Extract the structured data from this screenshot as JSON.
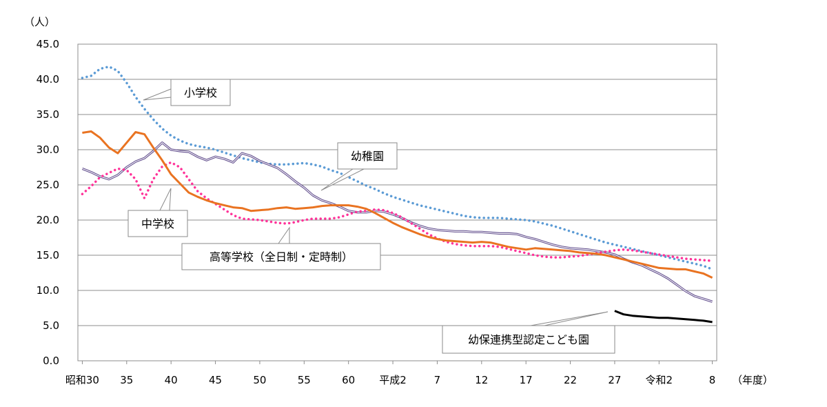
{
  "chart_data": {
    "type": "line",
    "y_unit": "（人）",
    "x_unit": "（年度）",
    "ylim": [
      0,
      45
    ],
    "yticks": [
      "0.0",
      "5.0",
      "10.0",
      "15.0",
      "20.0",
      "25.0",
      "30.0",
      "35.0",
      "40.0",
      "45.0"
    ],
    "ytick_values": [
      0,
      5,
      10,
      15,
      20,
      25,
      30,
      35,
      40,
      45
    ],
    "grid": true,
    "x_start_index": 0,
    "x_end_index": 72,
    "xticks": [
      {
        "i": 0,
        "label": "昭和30"
      },
      {
        "i": 5,
        "label": "35"
      },
      {
        "i": 10,
        "label": "40"
      },
      {
        "i": 15,
        "label": "45"
      },
      {
        "i": 20,
        "label": "50"
      },
      {
        "i": 25,
        "label": "55"
      },
      {
        "i": 30,
        "label": "60"
      },
      {
        "i": 35,
        "label": "平成2"
      },
      {
        "i": 40,
        "label": "7"
      },
      {
        "i": 45,
        "label": "12"
      },
      {
        "i": 50,
        "label": "17"
      },
      {
        "i": 55,
        "label": "22"
      },
      {
        "i": 60,
        "label": "27"
      },
      {
        "i": 65,
        "label": "令和2"
      },
      {
        "i": 71,
        "label": "8"
      }
    ],
    "series": [
      {
        "name": "小学校",
        "color": "#5b9bd5",
        "style": "dotted",
        "points": [
          [
            0,
            40.2
          ],
          [
            1,
            40.5
          ],
          [
            2,
            41.5
          ],
          [
            3,
            41.8
          ],
          [
            4,
            41.2
          ],
          [
            5,
            39.5
          ],
          [
            6,
            37.5
          ],
          [
            7,
            35.8
          ],
          [
            8,
            34.3
          ],
          [
            9,
            33.0
          ],
          [
            10,
            32.0
          ],
          [
            11,
            31.3
          ],
          [
            12,
            30.8
          ],
          [
            13,
            30.5
          ],
          [
            14,
            30.3
          ],
          [
            15,
            30.0
          ],
          [
            16,
            29.6
          ],
          [
            17,
            29.2
          ],
          [
            18,
            28.8
          ],
          [
            19,
            28.5
          ],
          [
            20,
            28.2
          ],
          [
            21,
            28.0
          ],
          [
            22,
            27.9
          ],
          [
            23,
            27.9
          ],
          [
            24,
            28.0
          ],
          [
            25,
            28.1
          ],
          [
            26,
            27.9
          ],
          [
            27,
            27.6
          ],
          [
            28,
            27.1
          ],
          [
            29,
            26.7
          ],
          [
            30,
            26.1
          ],
          [
            31,
            25.5
          ],
          [
            32,
            24.9
          ],
          [
            33,
            24.4
          ],
          [
            34,
            23.8
          ],
          [
            35,
            23.3
          ],
          [
            36,
            22.9
          ],
          [
            37,
            22.5
          ],
          [
            38,
            22.1
          ],
          [
            39,
            21.8
          ],
          [
            40,
            21.5
          ],
          [
            41,
            21.2
          ],
          [
            42,
            20.9
          ],
          [
            43,
            20.6
          ],
          [
            44,
            20.4
          ],
          [
            45,
            20.3
          ],
          [
            46,
            20.3
          ],
          [
            47,
            20.3
          ],
          [
            48,
            20.2
          ],
          [
            49,
            20.1
          ],
          [
            50,
            20.0
          ],
          [
            51,
            19.8
          ],
          [
            52,
            19.5
          ],
          [
            53,
            19.2
          ],
          [
            54,
            18.8
          ],
          [
            55,
            18.4
          ],
          [
            56,
            18.0
          ],
          [
            57,
            17.6
          ],
          [
            58,
            17.2
          ],
          [
            59,
            16.8
          ],
          [
            60,
            16.5
          ],
          [
            61,
            16.2
          ],
          [
            62,
            15.9
          ],
          [
            63,
            15.6
          ],
          [
            64,
            15.3
          ],
          [
            65,
            15.0
          ],
          [
            66,
            14.7
          ],
          [
            67,
            14.4
          ],
          [
            68,
            14.1
          ],
          [
            69,
            13.8
          ],
          [
            70,
            13.5
          ],
          [
            71,
            13.0
          ]
        ]
      },
      {
        "name": "幼稚園",
        "color": "#5f4b8b",
        "style": "double",
        "points": [
          [
            0,
            27.3
          ],
          [
            1,
            26.8
          ],
          [
            2,
            26.2
          ],
          [
            3,
            25.8
          ],
          [
            4,
            26.4
          ],
          [
            5,
            27.5
          ],
          [
            6,
            28.3
          ],
          [
            7,
            28.8
          ],
          [
            8,
            29.8
          ],
          [
            9,
            31.0
          ],
          [
            10,
            30.0
          ],
          [
            11,
            29.8
          ],
          [
            12,
            29.7
          ],
          [
            13,
            29.0
          ],
          [
            14,
            28.5
          ],
          [
            15,
            29.0
          ],
          [
            16,
            28.7
          ],
          [
            17,
            28.2
          ],
          [
            18,
            29.5
          ],
          [
            19,
            29.1
          ],
          [
            20,
            28.4
          ],
          [
            21,
            27.9
          ],
          [
            22,
            27.4
          ],
          [
            23,
            26.5
          ],
          [
            24,
            25.5
          ],
          [
            25,
            24.6
          ],
          [
            26,
            23.5
          ],
          [
            27,
            22.8
          ],
          [
            28,
            22.4
          ],
          [
            29,
            21.9
          ],
          [
            30,
            21.3
          ],
          [
            31,
            21.1
          ],
          [
            32,
            21.1
          ],
          [
            33,
            21.3
          ],
          [
            34,
            21.2
          ],
          [
            35,
            20.8
          ],
          [
            36,
            20.3
          ],
          [
            37,
            19.7
          ],
          [
            38,
            19.2
          ],
          [
            39,
            18.8
          ],
          [
            40,
            18.6
          ],
          [
            41,
            18.5
          ],
          [
            42,
            18.4
          ],
          [
            43,
            18.4
          ],
          [
            44,
            18.3
          ],
          [
            45,
            18.3
          ],
          [
            46,
            18.2
          ],
          [
            47,
            18.1
          ],
          [
            48,
            18.1
          ],
          [
            49,
            18.0
          ],
          [
            50,
            17.6
          ],
          [
            51,
            17.3
          ],
          [
            52,
            16.9
          ],
          [
            53,
            16.5
          ],
          [
            54,
            16.2
          ],
          [
            55,
            16.0
          ],
          [
            56,
            15.9
          ],
          [
            57,
            15.8
          ],
          [
            58,
            15.6
          ],
          [
            59,
            15.4
          ],
          [
            60,
            15.1
          ],
          [
            61,
            14.5
          ],
          [
            62,
            14.0
          ],
          [
            63,
            13.6
          ],
          [
            64,
            13.0
          ],
          [
            65,
            12.4
          ],
          [
            66,
            11.7
          ],
          [
            67,
            10.8
          ],
          [
            68,
            9.9
          ],
          [
            69,
            9.2
          ],
          [
            70,
            8.8
          ],
          [
            71,
            8.4
          ]
        ]
      },
      {
        "name": "中学校",
        "color": "#ff3399",
        "style": "dotted",
        "points": [
          [
            0,
            23.7
          ],
          [
            1,
            24.8
          ],
          [
            2,
            26.1
          ],
          [
            3,
            26.7
          ],
          [
            4,
            27.3
          ],
          [
            5,
            27.1
          ],
          [
            6,
            25.8
          ],
          [
            7,
            23.1
          ],
          [
            8,
            25.8
          ],
          [
            9,
            27.6
          ],
          [
            10,
            28.2
          ],
          [
            11,
            27.5
          ],
          [
            12,
            25.8
          ],
          [
            13,
            24.1
          ],
          [
            14,
            23.1
          ],
          [
            15,
            22.3
          ],
          [
            16,
            21.5
          ],
          [
            17,
            20.7
          ],
          [
            18,
            20.2
          ],
          [
            19,
            20.1
          ],
          [
            20,
            20.0
          ],
          [
            21,
            19.8
          ],
          [
            22,
            19.6
          ],
          [
            23,
            19.5
          ],
          [
            24,
            19.7
          ],
          [
            25,
            20.0
          ],
          [
            26,
            20.2
          ],
          [
            27,
            20.2
          ],
          [
            28,
            20.2
          ],
          [
            29,
            20.4
          ],
          [
            30,
            20.8
          ],
          [
            31,
            21.2
          ],
          [
            32,
            21.3
          ],
          [
            33,
            21.5
          ],
          [
            34,
            21.4
          ],
          [
            35,
            21.0
          ],
          [
            36,
            20.4
          ],
          [
            37,
            19.6
          ],
          [
            38,
            18.8
          ],
          [
            39,
            18.0
          ],
          [
            40,
            17.4
          ],
          [
            41,
            16.9
          ],
          [
            42,
            16.6
          ],
          [
            43,
            16.4
          ],
          [
            44,
            16.3
          ],
          [
            45,
            16.3
          ],
          [
            46,
            16.3
          ],
          [
            47,
            16.2
          ],
          [
            48,
            15.9
          ],
          [
            49,
            15.6
          ],
          [
            50,
            15.3
          ],
          [
            51,
            15.0
          ],
          [
            52,
            14.8
          ],
          [
            53,
            14.7
          ],
          [
            54,
            14.7
          ],
          [
            55,
            14.8
          ],
          [
            56,
            14.9
          ],
          [
            57,
            15.1
          ],
          [
            58,
            15.3
          ],
          [
            59,
            15.5
          ],
          [
            60,
            15.7
          ],
          [
            61,
            15.8
          ],
          [
            62,
            15.7
          ],
          [
            63,
            15.5
          ],
          [
            64,
            15.3
          ],
          [
            65,
            15.1
          ],
          [
            66,
            14.9
          ],
          [
            67,
            14.7
          ],
          [
            68,
            14.5
          ],
          [
            69,
            14.4
          ],
          [
            70,
            14.3
          ],
          [
            71,
            14.2
          ]
        ]
      },
      {
        "name": "高等学校（全日制・定時制）",
        "color": "#e97321",
        "style": "solid",
        "points": [
          [
            0,
            32.4
          ],
          [
            1,
            32.6
          ],
          [
            2,
            31.7
          ],
          [
            3,
            30.3
          ],
          [
            4,
            29.5
          ],
          [
            5,
            31.0
          ],
          [
            6,
            32.5
          ],
          [
            7,
            32.2
          ],
          [
            8,
            30.3
          ],
          [
            9,
            28.5
          ],
          [
            10,
            26.5
          ],
          [
            11,
            25.2
          ],
          [
            12,
            23.9
          ],
          [
            13,
            23.3
          ],
          [
            14,
            22.8
          ],
          [
            15,
            22.4
          ],
          [
            16,
            22.1
          ],
          [
            17,
            21.8
          ],
          [
            18,
            21.7
          ],
          [
            19,
            21.3
          ],
          [
            20,
            21.4
          ],
          [
            21,
            21.5
          ],
          [
            22,
            21.7
          ],
          [
            23,
            21.8
          ],
          [
            24,
            21.6
          ],
          [
            25,
            21.7
          ],
          [
            26,
            21.8
          ],
          [
            27,
            22.0
          ],
          [
            28,
            22.1
          ],
          [
            29,
            22.1
          ],
          [
            30,
            22.1
          ],
          [
            31,
            21.9
          ],
          [
            32,
            21.6
          ],
          [
            33,
            21.0
          ],
          [
            34,
            20.3
          ],
          [
            35,
            19.6
          ],
          [
            36,
            19.0
          ],
          [
            37,
            18.5
          ],
          [
            38,
            18.0
          ],
          [
            39,
            17.6
          ],
          [
            40,
            17.3
          ],
          [
            41,
            17.1
          ],
          [
            42,
            17.0
          ],
          [
            43,
            16.9
          ],
          [
            44,
            16.8
          ],
          [
            45,
            16.9
          ],
          [
            46,
            16.8
          ],
          [
            47,
            16.5
          ],
          [
            48,
            16.2
          ],
          [
            49,
            16.0
          ],
          [
            50,
            15.8
          ],
          [
            51,
            16.0
          ],
          [
            52,
            15.9
          ],
          [
            53,
            15.8
          ],
          [
            54,
            15.7
          ],
          [
            55,
            15.6
          ],
          [
            56,
            15.4
          ],
          [
            57,
            15.3
          ],
          [
            58,
            15.2
          ],
          [
            59,
            15.0
          ],
          [
            60,
            14.7
          ],
          [
            61,
            14.4
          ],
          [
            62,
            14.1
          ],
          [
            63,
            13.8
          ],
          [
            64,
            13.5
          ],
          [
            65,
            13.2
          ],
          [
            66,
            13.1
          ],
          [
            67,
            13.0
          ],
          [
            68,
            13.0
          ],
          [
            69,
            12.7
          ],
          [
            70,
            12.4
          ],
          [
            71,
            11.8
          ]
        ]
      },
      {
        "name": "幼保連携型認定こども園",
        "color": "#000000",
        "style": "solid",
        "points": [
          [
            60,
            7.1
          ],
          [
            61,
            6.6
          ],
          [
            62,
            6.4
          ],
          [
            63,
            6.3
          ],
          [
            64,
            6.2
          ],
          [
            65,
            6.1
          ],
          [
            66,
            6.1
          ],
          [
            67,
            6.0
          ],
          [
            68,
            5.9
          ],
          [
            69,
            5.8
          ],
          [
            70,
            5.7
          ],
          [
            71,
            5.5
          ]
        ]
      }
    ],
    "annotations": [
      {
        "text": "小学校",
        "series": "小学校"
      },
      {
        "text": "幼稚園",
        "series": "幼稚園"
      },
      {
        "text": "中学校",
        "series": "中学校"
      },
      {
        "text": "高等学校（全日制・定時制）",
        "series": "高等学校（全日制・定時制）"
      },
      {
        "text": "幼保連携型認定こども園",
        "series": "幼保連携型認定こども園"
      }
    ]
  }
}
